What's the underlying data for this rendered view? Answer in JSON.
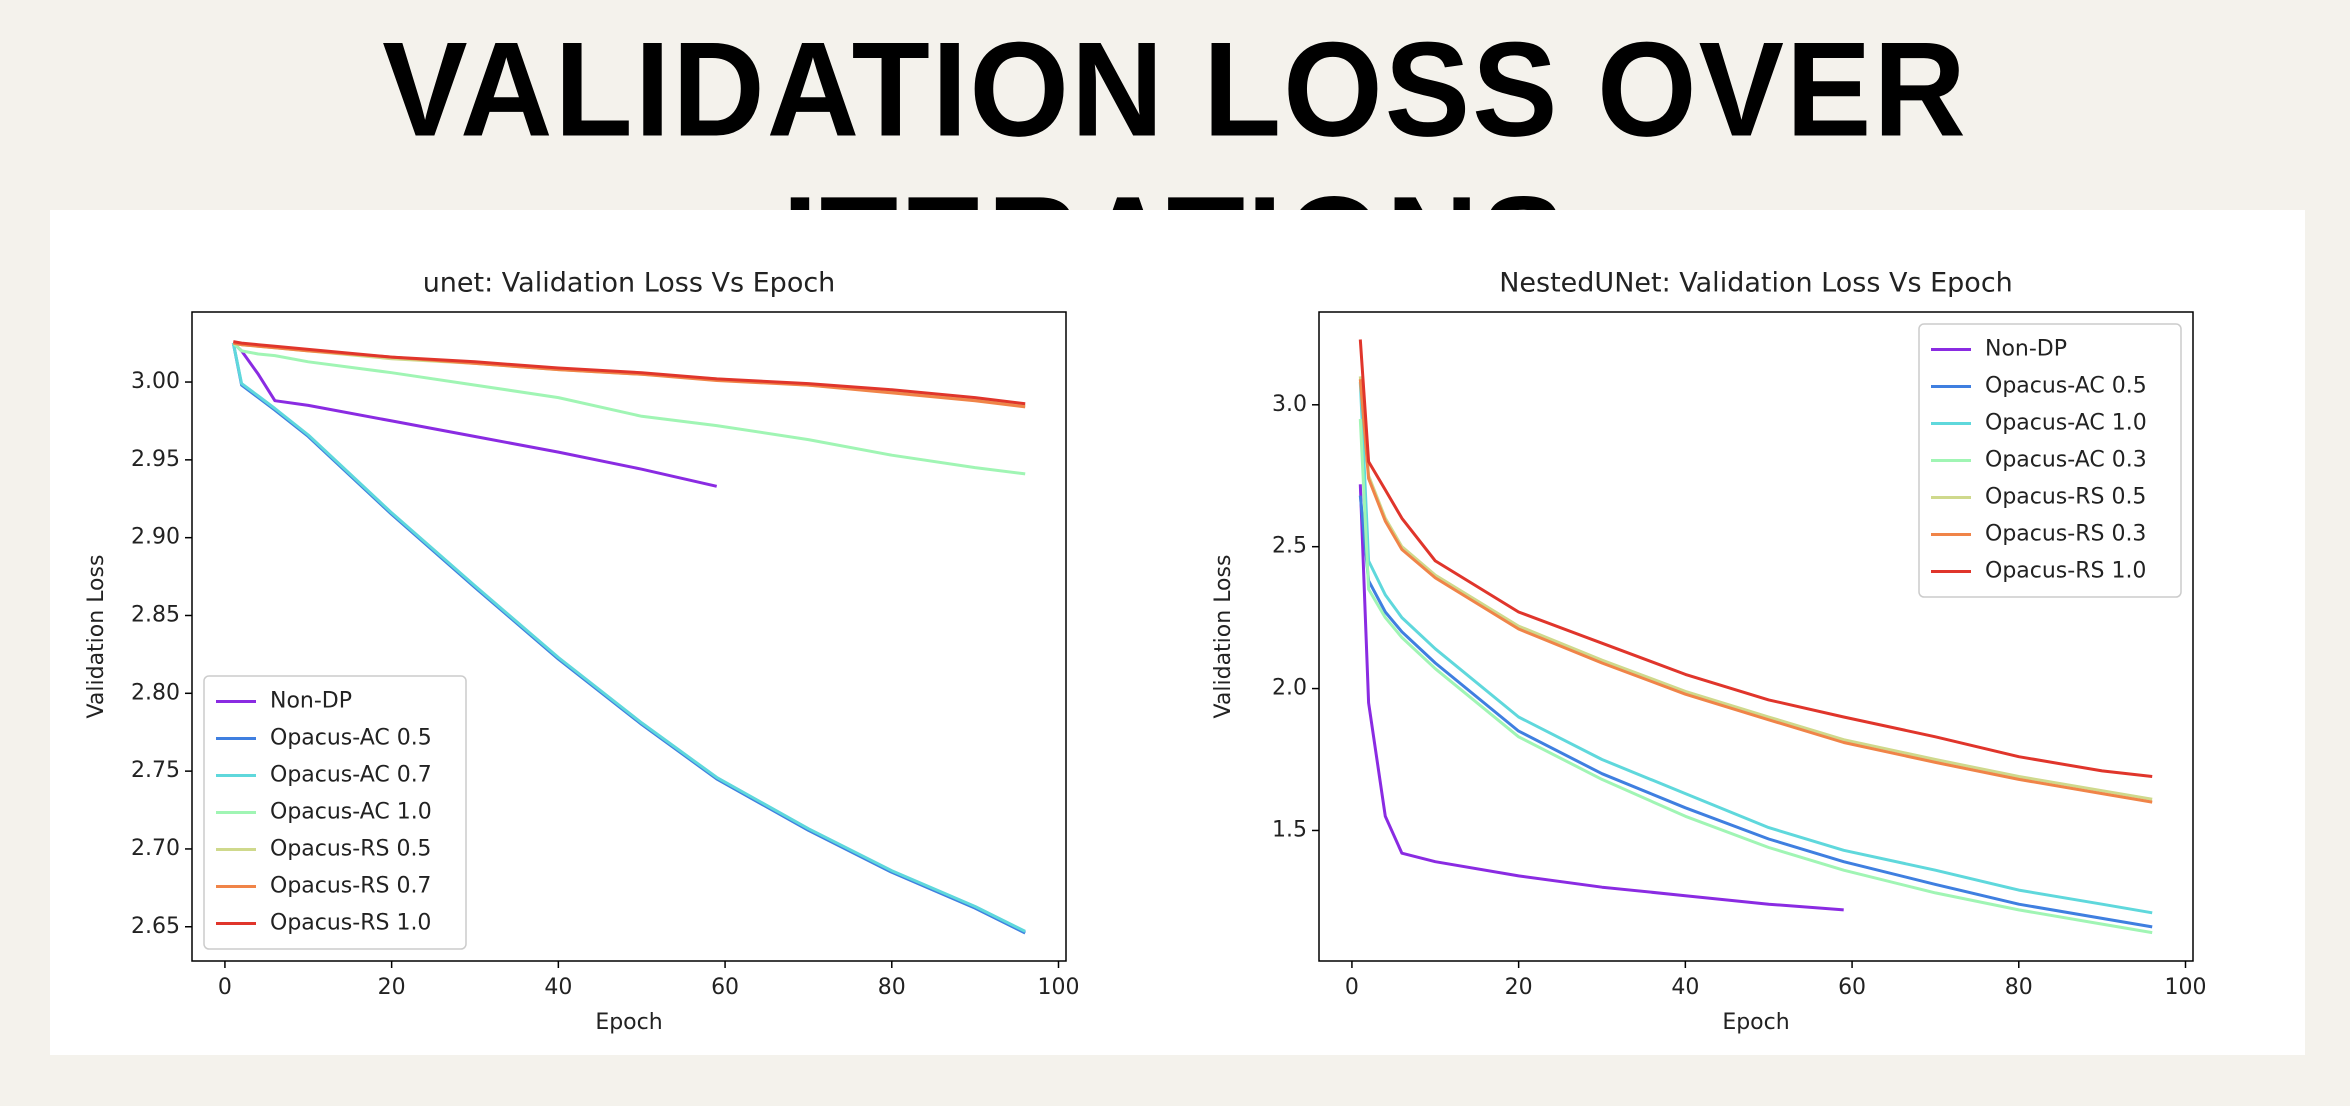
{
  "page_title": "VALIDATION LOSS OVER ITERATIONS",
  "chart_data": [
    {
      "type": "line",
      "title": "unet: Validation Loss Vs Epoch",
      "x_label": "Epoch",
      "y_label": "Validation Loss",
      "x": [
        1,
        2,
        4,
        6,
        10,
        20,
        30,
        40,
        50,
        59,
        70,
        80,
        90,
        96
      ],
      "xlim": [
        -3.95,
        100.9
      ],
      "xticks": [
        0,
        20,
        40,
        60,
        80,
        100
      ],
      "ylim": [
        2.628,
        3.045
      ],
      "yticks": [
        {
          "value": 2.65,
          "label": "2.65"
        },
        {
          "value": 2.7,
          "label": "2.70"
        },
        {
          "value": 2.75,
          "label": "2.75"
        },
        {
          "value": 2.8,
          "label": "2.80"
        },
        {
          "value": 2.85,
          "label": "2.85"
        },
        {
          "value": 2.9,
          "label": "2.90"
        },
        {
          "value": 2.95,
          "label": "2.95"
        },
        {
          "value": 3.0,
          "label": "3.00"
        }
      ],
      "legend": "lower left",
      "grid": false,
      "series": [
        {
          "name": "Non-DP",
          "color": "#8a2be2",
          "values": [
            3.025,
            3.02,
            3.005,
            2.988,
            2.985,
            2.975,
            2.965,
            2.955,
            2.944,
            2.933,
            null,
            null,
            null,
            null
          ]
        },
        {
          "name": "Opacus-AC 0.5",
          "color": "#3f7fe0",
          "values": [
            3.025,
            2.998,
            2.99,
            2.982,
            2.965,
            2.915,
            2.868,
            2.822,
            2.78,
            2.745,
            2.712,
            2.685,
            2.662,
            2.646
          ]
        },
        {
          "name": "Opacus-AC 0.7",
          "color": "#5fd8dc",
          "values": [
            3.025,
            2.999,
            2.991,
            2.983,
            2.966,
            2.916,
            2.869,
            2.823,
            2.781,
            2.746,
            2.713,
            2.686,
            2.663,
            2.647
          ]
        },
        {
          "name": "Opacus-AC 1.0",
          "color": "#a0f5b4",
          "values": [
            3.025,
            3.02,
            3.018,
            3.017,
            3.013,
            3.006,
            2.998,
            2.99,
            2.978,
            2.972,
            2.963,
            2.953,
            2.945,
            2.941
          ]
        },
        {
          "name": "Opacus-RS 0.5",
          "color": "#cfd98c",
          "values": [
            3.025,
            3.024,
            3.023,
            3.022,
            3.02,
            3.015,
            3.012,
            3.008,
            3.005,
            3.002,
            2.998,
            2.994,
            2.989,
            2.985
          ]
        },
        {
          "name": "Opacus-RS 0.7",
          "color": "#f08448",
          "values": [
            3.025,
            3.024,
            3.023,
            3.022,
            3.02,
            3.016,
            3.012,
            3.008,
            3.005,
            3.001,
            2.998,
            2.993,
            2.988,
            2.984
          ]
        },
        {
          "name": "Opacus-RS 1.0",
          "color": "#e0352b",
          "values": [
            3.026,
            3.025,
            3.024,
            3.023,
            3.021,
            3.016,
            3.013,
            3.009,
            3.006,
            3.002,
            2.999,
            2.995,
            2.99,
            2.986
          ]
        }
      ]
    },
    {
      "type": "line",
      "title": "NestedUNet: Validation Loss Vs Epoch",
      "x_label": "Epoch",
      "y_label": "Validation Loss",
      "x": [
        1,
        2,
        4,
        6,
        10,
        20,
        30,
        40,
        50,
        59,
        70,
        80,
        90,
        96
      ],
      "xlim": [
        -3.95,
        100.9
      ],
      "xticks": [
        0,
        20,
        40,
        60,
        80,
        100
      ],
      "ylim": [
        1.04,
        3.327
      ],
      "yticks": [
        {
          "value": 1.5,
          "label": "1.5"
        },
        {
          "value": 2.0,
          "label": "2.0"
        },
        {
          "value": 2.5,
          "label": "2.5"
        },
        {
          "value": 3.0,
          "label": "3.0"
        }
      ],
      "legend": "upper right",
      "grid": false,
      "series": [
        {
          "name": "Non-DP",
          "color": "#8a2be2",
          "values": [
            2.72,
            1.95,
            1.55,
            1.42,
            1.39,
            1.34,
            1.3,
            1.27,
            1.24,
            1.22,
            null,
            null,
            null,
            null
          ]
        },
        {
          "name": "Opacus-AC 0.5",
          "color": "#3f7fe0",
          "values": [
            2.68,
            2.38,
            2.27,
            2.2,
            2.09,
            1.85,
            1.7,
            1.58,
            1.47,
            1.39,
            1.31,
            1.24,
            1.19,
            1.16
          ]
        },
        {
          "name": "Opacus-AC 1.0",
          "color": "#5fd8dc",
          "values": [
            3.08,
            2.45,
            2.33,
            2.25,
            2.14,
            1.9,
            1.75,
            1.63,
            1.51,
            1.43,
            1.36,
            1.29,
            1.24,
            1.21
          ]
        },
        {
          "name": "Opacus-AC 0.3",
          "color": "#a0f5b4",
          "values": [
            2.95,
            2.35,
            2.25,
            2.18,
            2.07,
            1.83,
            1.68,
            1.55,
            1.44,
            1.36,
            1.28,
            1.22,
            1.17,
            1.14
          ]
        },
        {
          "name": "Opacus-RS 0.5",
          "color": "#cfd98c",
          "values": [
            3.1,
            2.75,
            2.6,
            2.5,
            2.4,
            2.22,
            2.1,
            1.99,
            1.9,
            1.82,
            1.75,
            1.69,
            1.64,
            1.61
          ]
        },
        {
          "name": "Opacus-RS 0.3",
          "color": "#f08448",
          "values": [
            3.09,
            2.74,
            2.59,
            2.49,
            2.39,
            2.21,
            2.09,
            1.98,
            1.89,
            1.81,
            1.74,
            1.68,
            1.63,
            1.6
          ]
        },
        {
          "name": "Opacus-RS 1.0",
          "color": "#e0352b",
          "values": [
            3.23,
            2.8,
            2.7,
            2.6,
            2.45,
            2.27,
            2.16,
            2.05,
            1.96,
            1.9,
            1.83,
            1.76,
            1.71,
            1.69
          ]
        }
      ]
    }
  ]
}
